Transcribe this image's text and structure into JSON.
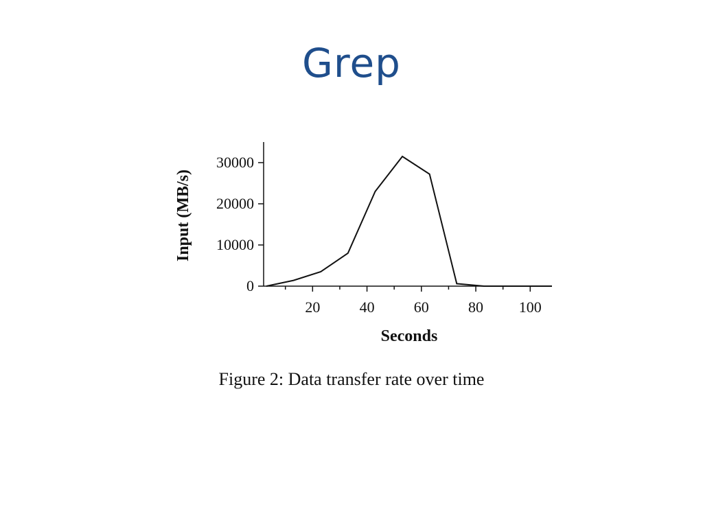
{
  "slide": {
    "title": "Grep"
  },
  "figure": {
    "caption": "Figure 2: Data transfer rate over time"
  },
  "colors": {
    "title": "#1f4e8c",
    "line": "#111111",
    "background": "#ffffff"
  },
  "chart_data": {
    "type": "line",
    "title": "",
    "xlabel": "Seconds",
    "ylabel": "Input (MB/s)",
    "xlim": [
      2,
      108
    ],
    "ylim": [
      0,
      35000
    ],
    "xticks": [
      20,
      40,
      60,
      80,
      100
    ],
    "xminorticks": [
      10,
      30,
      50,
      70,
      90
    ],
    "yticks": [
      0,
      10000,
      20000,
      30000
    ],
    "grid": false,
    "series": [
      {
        "x": [
          3,
          13,
          23,
          33,
          43,
          53,
          63,
          73,
          83,
          93,
          103,
          108
        ],
        "y": [
          0,
          1400,
          3500,
          8000,
          23000,
          31500,
          27200,
          600,
          0,
          0,
          0,
          0
        ]
      }
    ]
  }
}
